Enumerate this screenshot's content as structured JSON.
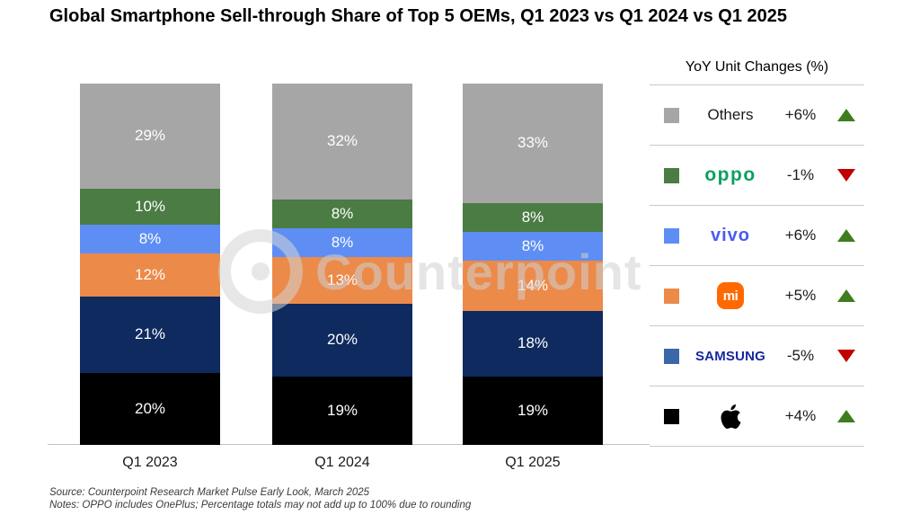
{
  "title": "Global Smartphone Sell-through Share of Top 5 OEMs, Q1 2023 vs Q1 2024 vs Q1 2025",
  "watermark": {
    "text": "Counterpoint"
  },
  "chart_data": {
    "type": "bar",
    "stacked": true,
    "categories": [
      "Q1 2023",
      "Q1 2024",
      "Q1 2025"
    ],
    "series": [
      {
        "name": "Apple",
        "color": "#000000",
        "values": [
          20,
          19,
          19
        ]
      },
      {
        "name": "Samsung",
        "color": "#0e2a5e",
        "values": [
          21,
          20,
          18
        ]
      },
      {
        "name": "Xiaomi",
        "color": "#ec8a4a",
        "values": [
          12,
          13,
          14
        ]
      },
      {
        "name": "vivo",
        "color": "#5e8ef4",
        "values": [
          8,
          8,
          8
        ]
      },
      {
        "name": "OPPO",
        "color": "#4a7c43",
        "values": [
          10,
          8,
          8
        ]
      },
      {
        "name": "Others",
        "color": "#a6a6a6",
        "values": [
          29,
          32,
          33
        ]
      }
    ],
    "value_suffix": "%",
    "ylim": [
      0,
      100
    ],
    "grid": false,
    "label_color": "#ffffff",
    "legend_position": "right"
  },
  "legend": {
    "title": "YoY Unit Changes (%)",
    "up_color": "#3e7d1f",
    "down_color": "#c00000",
    "rows": [
      {
        "brand": "Others",
        "logo_type": "text",
        "swatch_color": "#a6a6a6",
        "change": "+6%",
        "direction": "up"
      },
      {
        "brand": "OPPO",
        "logo_type": "oppo",
        "swatch_color": "#4a7c43",
        "change": "-1%",
        "direction": "down"
      },
      {
        "brand": "vivo",
        "logo_type": "vivo",
        "swatch_color": "#5e8ef4",
        "change": "+6%",
        "direction": "up"
      },
      {
        "brand": "Xiaomi",
        "logo_type": "mi",
        "swatch_color": "#ec8a4a",
        "change": "+5%",
        "direction": "up"
      },
      {
        "brand": "SAMSUNG",
        "logo_type": "samsung",
        "swatch_color": "#3a67a8",
        "change": "-5%",
        "direction": "down"
      },
      {
        "brand": "Apple",
        "logo_type": "apple",
        "swatch_color": "#000000",
        "change": "+4%",
        "direction": "up"
      }
    ]
  },
  "footer": {
    "source": "Source: Counterpoint Research Market Pulse Early Look, March 2025",
    "notes": "Notes: OPPO includes OnePlus; Percentage totals may not add up to 100% due to rounding"
  }
}
